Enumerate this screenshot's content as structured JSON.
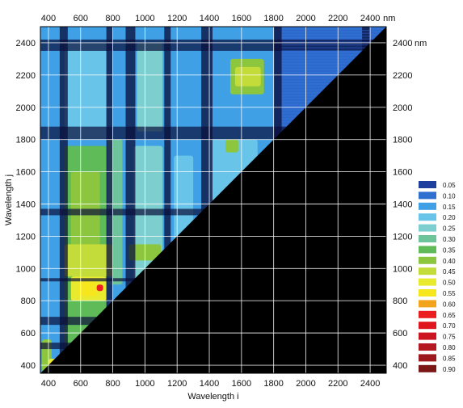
{
  "chart_data": {
    "type": "heatmap",
    "title": "",
    "xlabel": "Wavelength i",
    "ylabel": "Wavelength j",
    "unit": "nm",
    "x_ticks": [
      400,
      600,
      800,
      1000,
      1200,
      1400,
      1600,
      1800,
      2000,
      2200,
      2400
    ],
    "y_ticks": [
      400,
      600,
      800,
      1000,
      1200,
      1400,
      1600,
      1800,
      2000,
      2200,
      2400
    ],
    "xlim": [
      350,
      2500
    ],
    "ylim": [
      350,
      2500
    ],
    "grid": true,
    "masked_region": "lower-right triangle (j < i) shown in black",
    "legend_placement": "right",
    "legend": [
      {
        "value": "0.05",
        "color": "#1e3f9e"
      },
      {
        "value": "0.10",
        "color": "#2f6fd0"
      },
      {
        "value": "0.15",
        "color": "#3fa0e6"
      },
      {
        "value": "0.20",
        "color": "#68c4e8"
      },
      {
        "value": "0.25",
        "color": "#7dcfcf"
      },
      {
        "value": "0.30",
        "color": "#6ec49a"
      },
      {
        "value": "0.35",
        "color": "#5fba58"
      },
      {
        "value": "0.40",
        "color": "#8cc63e"
      },
      {
        "value": "0.45",
        "color": "#c4dc3a"
      },
      {
        "value": "0.50",
        "color": "#e8ea30"
      },
      {
        "value": "0.55",
        "color": "#f6e61e"
      },
      {
        "value": "0.60",
        "color": "#f2a51a"
      },
      {
        "value": "0.65",
        "color": "#ea1e1e"
      },
      {
        "value": "0.70",
        "color": "#e0161e"
      },
      {
        "value": "0.75",
        "color": "#cc1420"
      },
      {
        "value": "0.80",
        "color": "#b41820"
      },
      {
        "value": "0.85",
        "color": "#9c1a1e"
      },
      {
        "value": "0.90",
        "color": "#7a1616"
      }
    ],
    "regions": [
      {
        "x": [
          350,
          2500
        ],
        "y": [
          350,
          2500
        ],
        "value": 0.1
      },
      {
        "x": [
          350,
          1850
        ],
        "y": [
          350,
          1800
        ],
        "value": 0.15
      },
      {
        "x": [
          350,
          1800
        ],
        "y": [
          1800,
          2500
        ],
        "value": 0.15
      },
      {
        "x": [
          500,
          760
        ],
        "y": [
          1800,
          2400
        ],
        "value": 0.2
      },
      {
        "x": [
          950,
          1110
        ],
        "y": [
          1850,
          2400
        ],
        "value": 0.25
      },
      {
        "x": [
          1530,
          1740
        ],
        "y": [
          2080,
          2300
        ],
        "value": 0.4
      },
      {
        "x": [
          1560,
          1720
        ],
        "y": [
          2130,
          2250
        ],
        "value": 0.45
      },
      {
        "x": [
          500,
          760
        ],
        "y": [
          350,
          1760
        ],
        "value": 0.35
      },
      {
        "x": [
          540,
          720
        ],
        "y": [
          1100,
          1600
        ],
        "value": 0.4
      },
      {
        "x": [
          770,
          860
        ],
        "y": [
          900,
          1800
        ],
        "value": 0.3
      },
      {
        "x": [
          930,
          1110
        ],
        "y": [
          900,
          1760
        ],
        "value": 0.25
      },
      {
        "x": [
          1180,
          1300
        ],
        "y": [
          1000,
          1700
        ],
        "value": 0.2
      },
      {
        "x": [
          1400,
          1700
        ],
        "y": [
          1400,
          1800
        ],
        "value": 0.2
      },
      {
        "x": [
          1500,
          1580
        ],
        "y": [
          1720,
          1800
        ],
        "value": 0.4
      },
      {
        "x": [
          500,
          800
        ],
        "y": [
          950,
          1150
        ],
        "value": 0.45
      },
      {
        "x": [
          540,
          760
        ],
        "y": [
          800,
          950
        ],
        "value": 0.5
      },
      {
        "x": [
          590,
          700
        ],
        "y": [
          830,
          920
        ],
        "value": 0.55
      },
      {
        "x": [
          700,
          740
        ],
        "y": [
          860,
          900
        ],
        "value": 0.65
      },
      {
        "x": [
          360,
          420
        ],
        "y": [
          360,
          560
        ],
        "value": 0.4
      },
      {
        "x": [
          400,
          460
        ],
        "y": [
          360,
          440
        ],
        "value": 0.5
      },
      {
        "x": [
          900,
          1100
        ],
        "y": [
          1050,
          1150
        ],
        "value": 0.4
      }
    ],
    "dark_bands_x": [
      [
        470,
        520
      ],
      [
        760,
        800
      ],
      [
        880,
        940
      ],
      [
        1120,
        1160
      ],
      [
        1350,
        1420
      ],
      [
        1800,
        1850
      ],
      [
        2350,
        2400
      ]
    ],
    "dark_bands_y": [
      [
        1800,
        1880
      ],
      [
        2350,
        2420
      ],
      [
        1330,
        1370
      ],
      [
        920,
        940
      ],
      [
        650,
        700
      ],
      [
        500,
        540
      ]
    ]
  }
}
